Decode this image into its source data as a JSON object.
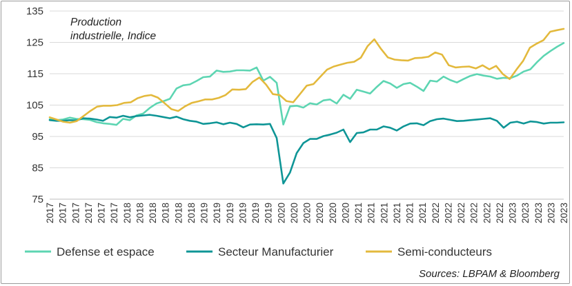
{
  "chart_data": {
    "type": "line",
    "annotation_lines": [
      "Production",
      "industrielle, Indice"
    ],
    "source": "Sources: LBPAM & Bloomberg",
    "ylim": [
      75,
      135
    ],
    "yticks": [
      75,
      85,
      95,
      105,
      115,
      125,
      135
    ],
    "x_tick_labels": [
      "2017",
      "2017",
      "2017",
      "2017",
      "2017",
      "2017",
      "2018",
      "2018",
      "2018",
      "2018",
      "2018",
      "2018",
      "2019",
      "2019",
      "2019",
      "2019",
      "2019",
      "2019",
      "2020",
      "2020",
      "2020",
      "2020",
      "2020",
      "2020",
      "2021",
      "2021",
      "2021",
      "2021",
      "2021",
      "2021",
      "2022",
      "2022",
      "2022",
      "2022",
      "2022",
      "2022",
      "2023",
      "2023",
      "2023",
      "2023",
      "2023"
    ],
    "gridlines": "horizontal",
    "legend_position": "bottom",
    "series": [
      {
        "name": "Defense et espace",
        "color": "#5dd5b2",
        "values": [
          100.5,
          100.2,
          100.4,
          101.0,
          100.6,
          100.5,
          100.3,
          99.6,
          99.2,
          99.0,
          98.7,
          100.6,
          100.2,
          101.7,
          102.3,
          104.1,
          105.5,
          106.2,
          107.0,
          110.3,
          111.3,
          111.6,
          112.7,
          113.9,
          114.1,
          116.0,
          115.6,
          115.7,
          116.1,
          116.1,
          116.0,
          117.0,
          112.8,
          114.0,
          112.1,
          98.8,
          104.6,
          104.8,
          104.2,
          105.6,
          105.2,
          106.5,
          106.8,
          105.5,
          108.3,
          107.0,
          109.9,
          109.3,
          108.7,
          110.8,
          112.7,
          111.9,
          110.5,
          111.7,
          112.1,
          110.9,
          109.5,
          112.8,
          112.5,
          114.1,
          113.0,
          112.2,
          113.3,
          114.3,
          114.9,
          114.4,
          114.1,
          113.4,
          113.7,
          113.6,
          114.4,
          115.7,
          116.4,
          118.7,
          120.7,
          122.2,
          123.6,
          124.8
        ]
      },
      {
        "name": "Secteur Manufacturier",
        "color": "#0e9596",
        "values": [
          100.2,
          100.0,
          100.0,
          100.2,
          100.1,
          100.8,
          100.7,
          100.4,
          100.0,
          101.2,
          101.0,
          101.6,
          101.1,
          101.5,
          101.7,
          101.9,
          101.6,
          101.2,
          100.8,
          101.3,
          100.5,
          100.0,
          99.7,
          99.0,
          99.2,
          99.5,
          98.9,
          99.4,
          99.0,
          97.9,
          98.8,
          98.9,
          98.8,
          99.0,
          94.5,
          80.0,
          83.5,
          89.7,
          92.9,
          94.2,
          94.2,
          95.1,
          95.6,
          96.2,
          97.2,
          93.2,
          96.1,
          96.3,
          97.2,
          97.2,
          98.2,
          97.8,
          96.9,
          98.2,
          99.1,
          99.2,
          98.6,
          99.9,
          100.5,
          100.7,
          100.3,
          99.9,
          100.0,
          100.2,
          100.4,
          100.6,
          100.8,
          100.0,
          97.8,
          99.4,
          99.7,
          99.1,
          99.8,
          99.6,
          99.1,
          99.4,
          99.4,
          99.5
        ]
      },
      {
        "name": "Semi-conducteurs",
        "color": "#e3b93c",
        "values": [
          101.1,
          100.4,
          99.7,
          99.4,
          99.9,
          101.5,
          103.1,
          104.5,
          104.8,
          104.8,
          105.0,
          105.7,
          105.9,
          107.2,
          107.9,
          108.2,
          107.4,
          105.6,
          103.7,
          103.1,
          104.6,
          105.7,
          106.2,
          106.8,
          106.8,
          107.3,
          108.2,
          110.0,
          109.9,
          110.1,
          112.4,
          113.8,
          111.5,
          108.5,
          108.2,
          106.3,
          105.9,
          108.5,
          111.2,
          111.7,
          114.0,
          116.3,
          117.3,
          117.9,
          118.5,
          118.8,
          120.1,
          123.8,
          126.0,
          122.9,
          120.2,
          119.5,
          119.3,
          119.2,
          120.0,
          120.1,
          120.4,
          121.8,
          121.1,
          117.7,
          117.0,
          117.2,
          117.3,
          116.7,
          117.7,
          116.4,
          117.5,
          114.9,
          113.3,
          116.3,
          119.1,
          123.3,
          124.6,
          125.7,
          128.4,
          128.9,
          129.3
        ]
      }
    ]
  }
}
